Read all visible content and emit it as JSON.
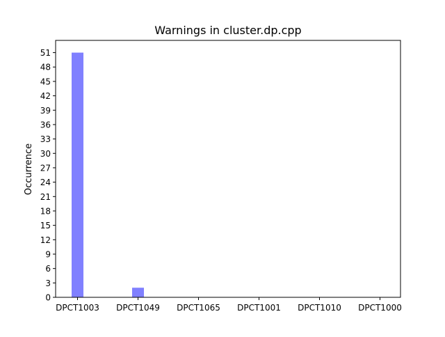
{
  "chart_data": {
    "type": "bar",
    "title": "Warnings in cluster.dp.cpp",
    "xlabel": "",
    "ylabel": "Occurrence",
    "categories": [
      "DPCT1003",
      "DPCT1049",
      "DPCT1065",
      "DPCT1001",
      "DPCT1010",
      "DPCT1000"
    ],
    "values": [
      51,
      2,
      0,
      0,
      0,
      0
    ],
    "ylim": [
      0,
      53.55
    ],
    "yticks": [
      0,
      3,
      6,
      9,
      12,
      15,
      18,
      21,
      24,
      27,
      30,
      33,
      36,
      39,
      42,
      45,
      48,
      51
    ],
    "bar_color": "#8080ff",
    "grid": false,
    "legend": "none"
  }
}
